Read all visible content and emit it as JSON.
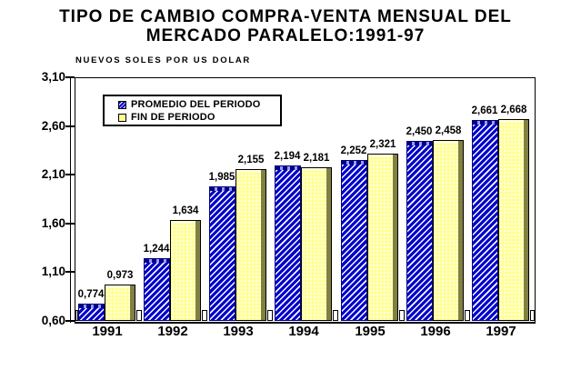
{
  "title": {
    "line1": "TIPO DE CAMBIO COMPRA-VENTA MENSUAL DEL",
    "line2": "MERCADO PARALELO:1991-97"
  },
  "subtitle": "NUEVOS SOLES POR US DOLAR",
  "chart_data": {
    "type": "bar",
    "title": "TIPO DE CAMBIO COMPRA-VENTA MENSUAL DEL MERCADO PARALELO:1991-97",
    "unit_label": "NUEVOS SOLES POR US DOLAR",
    "categories": [
      "1991",
      "1992",
      "1993",
      "1994",
      "1995",
      "1996",
      "1997"
    ],
    "series": [
      {
        "name": "PROMEDIO DEL PERIODO",
        "values": [
          0.774,
          1.244,
          1.985,
          2.194,
          2.252,
          2.45,
          2.661
        ],
        "labels": [
          "0,774",
          "1,244",
          "1,985",
          "2,194",
          "2,252",
          "2,450",
          "2,661"
        ]
      },
      {
        "name": "FIN DE PERIODO",
        "values": [
          0.973,
          1.634,
          2.155,
          2.181,
          2.321,
          2.458,
          2.668
        ],
        "labels": [
          "0,973",
          "1,634",
          "2,155",
          "2,181",
          "2,321",
          "2,458",
          "2,668"
        ]
      }
    ],
    "ylim": [
      0.6,
      3.1
    ],
    "yticks": [
      0.6,
      1.1,
      1.6,
      2.1,
      2.6,
      3.1
    ],
    "ytick_labels": [
      "0,60",
      "1,10",
      "1,60",
      "2,10",
      "2,60",
      "3,10"
    ],
    "grid": false,
    "legend_position": "top-left",
    "decimal_separator": ","
  },
  "colors": {
    "promedio_fill": "#0000CC",
    "promedio_hatch": "#FFFFFF",
    "promedio_top_edge": "#000080",
    "fin_fill": "#FFFF99",
    "fin_edge_3d": "#808040",
    "axis": "#000000",
    "background": "#FFFFFF",
    "text": "#000000"
  }
}
